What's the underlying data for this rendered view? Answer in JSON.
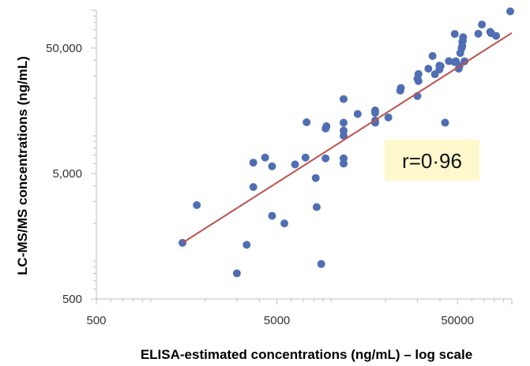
{
  "chart_data": {
    "type": "scatter",
    "scale": "log-log",
    "xlabel": "ELISA-estimated concentrations (ng/mL) – log scale",
    "ylabel": "LC-MS/MS concentrations (ng/mL)",
    "xlim": [
      500,
      100000
    ],
    "ylim": [
      500,
      100000
    ],
    "x_ticks": [
      500,
      5000,
      50000
    ],
    "x_tick_labels": [
      "500",
      "5000",
      "50000"
    ],
    "y_ticks": [
      500,
      5000,
      50000
    ],
    "y_tick_labels": [
      "500",
      "5,000",
      "50,000"
    ],
    "grid": false,
    "marker_color": "#4F6EB3",
    "trendline": {
      "x": [
        1500,
        100000
      ],
      "y": [
        1400,
        66000
      ],
      "color": "#C0504D"
    },
    "annotation": {
      "text": "r=0·96",
      "background": "#FFF8CC"
    },
    "points": [
      {
        "x": 1500,
        "y": 1400
      },
      {
        "x": 1800,
        "y": 2800
      },
      {
        "x": 3000,
        "y": 800
      },
      {
        "x": 3400,
        "y": 1350
      },
      {
        "x": 3700,
        "y": 3900
      },
      {
        "x": 3700,
        "y": 6100
      },
      {
        "x": 4300,
        "y": 6700
      },
      {
        "x": 4700,
        "y": 2300
      },
      {
        "x": 4700,
        "y": 5700
      },
      {
        "x": 5500,
        "y": 2000
      },
      {
        "x": 6300,
        "y": 5900
      },
      {
        "x": 7200,
        "y": 6700
      },
      {
        "x": 7300,
        "y": 12800
      },
      {
        "x": 8200,
        "y": 4600
      },
      {
        "x": 8300,
        "y": 2700
      },
      {
        "x": 8800,
        "y": 950
      },
      {
        "x": 9300,
        "y": 6600
      },
      {
        "x": 9300,
        "y": 11400
      },
      {
        "x": 9400,
        "y": 11900
      },
      {
        "x": 11700,
        "y": 6000
      },
      {
        "x": 11700,
        "y": 6600
      },
      {
        "x": 11700,
        "y": 10000
      },
      {
        "x": 11700,
        "y": 11000
      },
      {
        "x": 11700,
        "y": 12700
      },
      {
        "x": 11700,
        "y": 19600
      },
      {
        "x": 14000,
        "y": 14900
      },
      {
        "x": 17500,
        "y": 12700
      },
      {
        "x": 17500,
        "y": 13200
      },
      {
        "x": 17500,
        "y": 15200
      },
      {
        "x": 17500,
        "y": 15900
      },
      {
        "x": 20700,
        "y": 14000
      },
      {
        "x": 24100,
        "y": 22900
      },
      {
        "x": 24300,
        "y": 24000
      },
      {
        "x": 30000,
        "y": 20700
      },
      {
        "x": 30000,
        "y": 28500
      },
      {
        "x": 30400,
        "y": 27300
      },
      {
        "x": 30400,
        "y": 31000
      },
      {
        "x": 34500,
        "y": 34200
      },
      {
        "x": 36400,
        "y": 43200
      },
      {
        "x": 37500,
        "y": 30900
      },
      {
        "x": 39700,
        "y": 33700
      },
      {
        "x": 39700,
        "y": 36200
      },
      {
        "x": 40300,
        "y": 35900
      },
      {
        "x": 42700,
        "y": 12700
      },
      {
        "x": 44800,
        "y": 39300
      },
      {
        "x": 48100,
        "y": 38700
      },
      {
        "x": 48300,
        "y": 64700
      },
      {
        "x": 49000,
        "y": 39200
      },
      {
        "x": 50800,
        "y": 34200
      },
      {
        "x": 51300,
        "y": 35900
      },
      {
        "x": 51800,
        "y": 45600
      },
      {
        "x": 52700,
        "y": 49800
      },
      {
        "x": 53100,
        "y": 51800
      },
      {
        "x": 53200,
        "y": 56000
      },
      {
        "x": 53500,
        "y": 57200
      },
      {
        "x": 53700,
        "y": 61000
      },
      {
        "x": 54700,
        "y": 39200
      },
      {
        "x": 65200,
        "y": 65000
      },
      {
        "x": 68300,
        "y": 76900
      },
      {
        "x": 75900,
        "y": 67300
      },
      {
        "x": 76800,
        "y": 65600
      },
      {
        "x": 81800,
        "y": 62500
      },
      {
        "x": 98000,
        "y": 98000
      }
    ]
  }
}
